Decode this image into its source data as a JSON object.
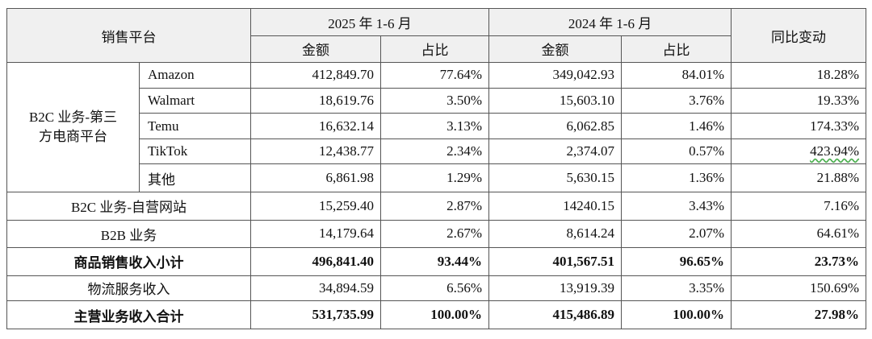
{
  "header": {
    "platform": "销售平台",
    "year2025": "2025 年 1-6 月",
    "year2024": "2024 年 1-6 月",
    "yoy": "同比变动",
    "amount": "金额",
    "share": "占比"
  },
  "group_b2c_third": "B2C 业务-第三方电商平台",
  "group_lines": [
    "B2C 业务-第三",
    "方电商平台"
  ],
  "platform_rows": [
    {
      "name": "Amazon",
      "a25": "412,849.70",
      "s25": "77.64%",
      "a24": "349,042.93",
      "s24": "84.01%",
      "yoy": "18.28%"
    },
    {
      "name": "Walmart",
      "a25": "18,619.76",
      "s25": "3.50%",
      "a24": "15,603.10",
      "s24": "3.76%",
      "yoy": "19.33%"
    },
    {
      "name": "Temu",
      "a25": "16,632.14",
      "s25": "3.13%",
      "a24": "6,062.85",
      "s24": "1.46%",
      "yoy": "174.33%"
    },
    {
      "name": "TikTok",
      "a25": "12,438.77",
      "s25": "2.34%",
      "a24": "2,374.07",
      "s24": "0.57%",
      "yoy": "423.94%"
    },
    {
      "name": "其他",
      "a25": "6,861.98",
      "s25": "1.29%",
      "a24": "5,630.15",
      "s24": "1.36%",
      "yoy": "21.88%"
    }
  ],
  "summary_rows": [
    {
      "name": "B2C 业务-自营网站",
      "a25": "15,259.40",
      "s25": "2.87%",
      "a24": "14240.15",
      "s24": "3.43%",
      "yoy": "7.16%"
    },
    {
      "name": "B2B 业务",
      "a25": "14,179.64",
      "s25": "2.67%",
      "a24": "8,614.24",
      "s24": "2.07%",
      "yoy": "64.61%"
    },
    {
      "name": "商品销售收入小计",
      "a25": "496,841.40",
      "s25": "93.44%",
      "a24": "401,567.51",
      "s24": "96.65%",
      "yoy": "23.73%"
    },
    {
      "name": "物流服务收入",
      "a25": "34,894.59",
      "s25": "6.56%",
      "a24": "13,919.39",
      "s24": "3.35%",
      "yoy": "150.69%"
    },
    {
      "name": "主营业务收入合计",
      "a25": "531,735.99",
      "s25": "100.00%",
      "a24": "415,486.89",
      "s24": "100.00%",
      "yoy": "27.98%"
    }
  ]
}
